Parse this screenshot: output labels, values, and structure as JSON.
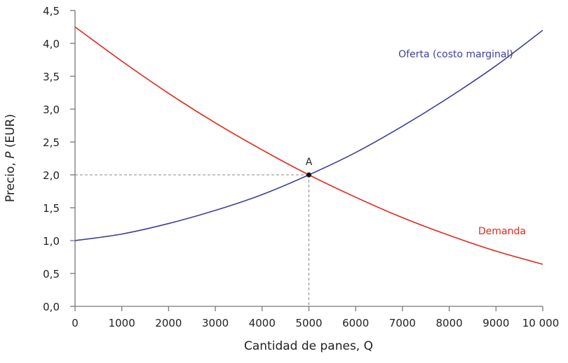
{
  "chart_data": {
    "type": "line",
    "xlabel": "Cantidad de panes, Q",
    "ylabel_prefix": "Precio, ",
    "ylabel_var": "P",
    "ylabel_suffix": " (EUR)",
    "xlim": [
      0,
      10000
    ],
    "ylim": [
      0,
      4.5
    ],
    "grid": false,
    "x_ticks": [
      0,
      1000,
      2000,
      3000,
      4000,
      5000,
      6000,
      7000,
      8000,
      9000,
      10000
    ],
    "x_tick_labels": [
      "0",
      "1000",
      "2000",
      "3000",
      "4000",
      "5000",
      "6000",
      "7000",
      "8000",
      "9000",
      "10 000"
    ],
    "y_ticks": [
      0,
      0.5,
      1,
      1.5,
      2,
      2.5,
      3,
      3.5,
      4,
      4.5
    ],
    "y_tick_labels": [
      "0,0",
      "0,5",
      "1,0",
      "1,5",
      "2,0",
      "2,5",
      "3,0",
      "3,5",
      "4,0",
      "4,5"
    ],
    "x": [
      0,
      1000,
      2000,
      3000,
      4000,
      5000,
      6000,
      7000,
      8000,
      9000,
      10000
    ],
    "series": [
      {
        "name": "Oferta (costo marginal)",
        "color": "#3c3f9c",
        "values": [
          1.0,
          1.1,
          1.26,
          1.46,
          1.7,
          2.0,
          2.34,
          2.74,
          3.18,
          3.66,
          4.2
        ]
      },
      {
        "name": "Demanda",
        "color": "#e3261c",
        "values": [
          4.25,
          3.73,
          3.24,
          2.79,
          2.38,
          2.0,
          1.66,
          1.35,
          1.08,
          0.84,
          0.64
        ]
      }
    ],
    "annotations": [
      {
        "label": "A",
        "x": 5000,
        "y": 2.0
      }
    ]
  }
}
